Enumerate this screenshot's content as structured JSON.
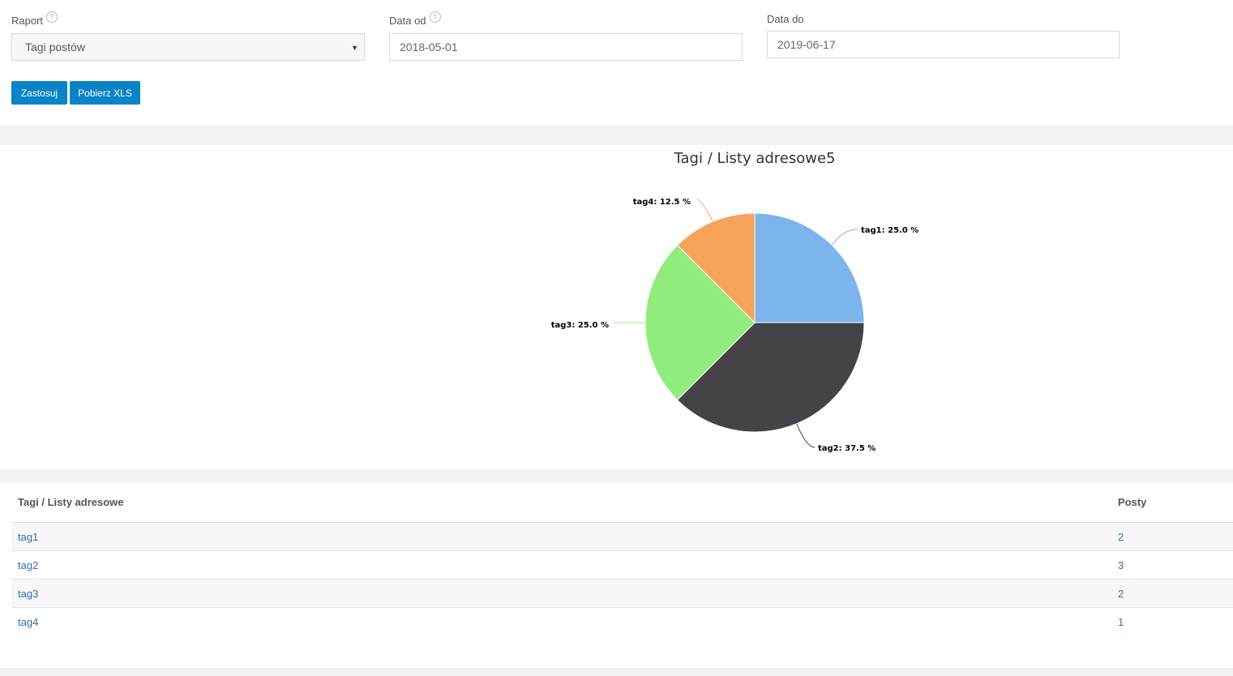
{
  "filters": {
    "raport": {
      "label": "Raport",
      "help": "?",
      "value": "Tagi postów"
    },
    "data_od": {
      "label": "Data od",
      "help": "?",
      "value": "2018-05-01"
    },
    "data_do": {
      "label": "Data do",
      "value": "2019-06-17"
    },
    "buttons": {
      "apply": "Zastosuj",
      "download": "Pobierz XLS"
    }
  },
  "chart_data": {
    "type": "pie",
    "title": "Tagi / Listy adresowe5",
    "categories": [
      "tag1",
      "tag2",
      "tag3",
      "tag4"
    ],
    "values": [
      2,
      3,
      2,
      1
    ],
    "labels": [
      "tag1: 25.0 %",
      "tag2: 37.5 %",
      "tag3: 25.0 %",
      "tag4: 12.5 %"
    ],
    "colors": [
      "#7cb5ec",
      "#434348",
      "#90ed7d",
      "#f7a35c"
    ],
    "legend": "none"
  },
  "table": {
    "headers": [
      "Tagi / Listy adresowe",
      "Posty"
    ],
    "rows": [
      {
        "tag": "tag1",
        "posts": "2"
      },
      {
        "tag": "tag2",
        "posts": "3"
      },
      {
        "tag": "tag3",
        "posts": "2"
      },
      {
        "tag": "tag4",
        "posts": "1"
      }
    ]
  }
}
